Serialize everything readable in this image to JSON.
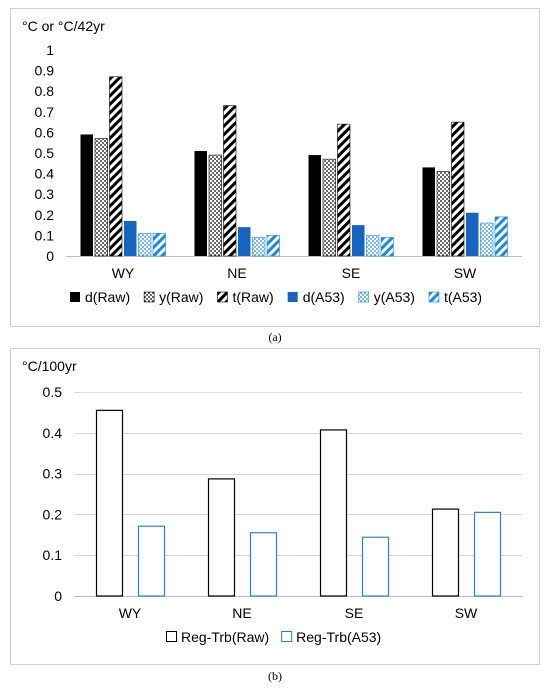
{
  "chart_data": [
    {
      "type": "bar",
      "unit_label": "°C or °C/42yr",
      "caption": "(a)",
      "categories": [
        "WY",
        "NE",
        "SE",
        "SW"
      ],
      "ylim": [
        0,
        1
      ],
      "yticks": [
        "0",
        "0.1",
        "0.2",
        "0.3",
        "0.4",
        "0.5",
        "0.6",
        "0.7",
        "0.8",
        "0.9",
        "1"
      ],
      "grid": false,
      "legend_position": "bottom",
      "series": [
        {
          "name": "d(Raw)",
          "values": [
            0.59,
            0.51,
            0.49,
            0.43
          ],
          "color": "#000000",
          "pattern": "solid"
        },
        {
          "name": "y(Raw)",
          "values": [
            0.57,
            0.49,
            0.47,
            0.41
          ],
          "color": "#000000",
          "pattern": "dots"
        },
        {
          "name": "t(Raw)",
          "values": [
            0.87,
            0.73,
            0.64,
            0.65
          ],
          "color": "#000000",
          "pattern": "stripes"
        },
        {
          "name": "d(A53)",
          "values": [
            0.17,
            0.14,
            0.15,
            0.21
          ],
          "color": "#1565C0",
          "pattern": "solid"
        },
        {
          "name": "y(A53)",
          "values": [
            0.11,
            0.09,
            0.1,
            0.16
          ],
          "color": "#1E88E5",
          "pattern": "dots"
        },
        {
          "name": "t(A53)",
          "values": [
            0.11,
            0.1,
            0.09,
            0.19
          ],
          "color": "#1E88E5",
          "pattern": "stripes"
        }
      ]
    },
    {
      "type": "bar",
      "unit_label": "°C/100yr",
      "caption": "(b)",
      "categories": [
        "WY",
        "NE",
        "SE",
        "SW"
      ],
      "ylim": [
        0,
        0.5
      ],
      "yticks": [
        "0",
        "0.1",
        "0.2",
        "0.3",
        "0.4",
        "0.5"
      ],
      "grid": true,
      "legend_position": "bottom",
      "series": [
        {
          "name": "Reg-Trb(Raw)",
          "values": [
            0.455,
            0.287,
            0.407,
            0.213
          ],
          "color": "#000000",
          "pattern": "outline"
        },
        {
          "name": "Reg-Trb(A53)",
          "values": [
            0.171,
            0.155,
            0.144,
            0.205
          ],
          "color": "#2F7FD6",
          "pattern": "outline"
        }
      ]
    }
  ]
}
